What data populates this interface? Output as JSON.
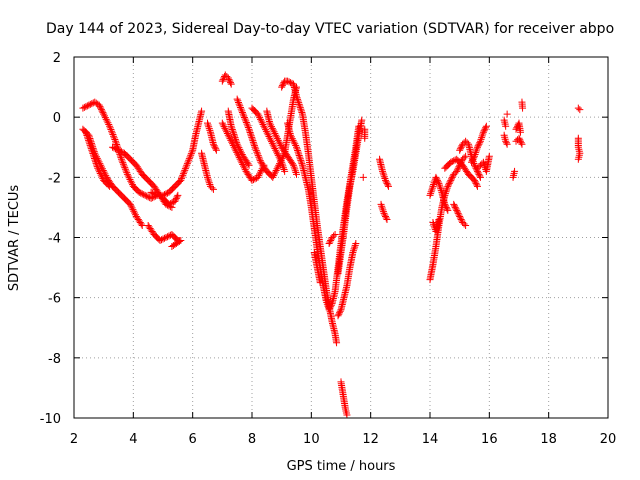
{
  "chart_data": {
    "type": "scatter",
    "title": "Day 144 of 2023, Sidereal Day-to-day VTEC variation (SDTVAR) for receiver abpo",
    "xlabel": "GPS time / hours",
    "ylabel": "SDTVAR / TECUs",
    "xlim": [
      2,
      20
    ],
    "ylim": [
      -10,
      2
    ],
    "xticks": [
      2,
      4,
      6,
      8,
      10,
      12,
      14,
      16,
      18,
      20
    ],
    "yticks": [
      -10,
      -8,
      -6,
      -4,
      -2,
      0,
      2
    ],
    "grid": true,
    "marker": "+",
    "color": "#ff0000",
    "series": [
      {
        "name": "s1",
        "points": [
          [
            2.3,
            -0.4
          ],
          [
            2.5,
            -0.6
          ],
          [
            2.7,
            -1.2
          ],
          [
            2.9,
            -1.6
          ],
          [
            3.1,
            -2.0
          ],
          [
            3.3,
            -2.3
          ],
          [
            3.5,
            -2.5
          ],
          [
            3.7,
            -2.7
          ],
          [
            3.9,
            -2.9
          ],
          [
            4.1,
            -3.3
          ],
          [
            4.3,
            -3.6
          ]
        ]
      },
      {
        "name": "s2",
        "points": [
          [
            2.3,
            0.3
          ],
          [
            2.5,
            0.4
          ],
          [
            2.7,
            0.5
          ],
          [
            2.85,
            0.4
          ],
          [
            3.0,
            0.1
          ],
          [
            3.2,
            -0.3
          ],
          [
            3.4,
            -0.8
          ],
          [
            3.6,
            -1.4
          ],
          [
            3.8,
            -1.9
          ],
          [
            4.0,
            -2.3
          ],
          [
            4.2,
            -2.5
          ],
          [
            4.4,
            -2.6
          ],
          [
            4.6,
            -2.7
          ],
          [
            4.8,
            -2.6
          ]
        ]
      },
      {
        "name": "s3",
        "points": [
          [
            2.4,
            -0.5
          ],
          [
            2.6,
            -1.1
          ],
          [
            2.8,
            -1.7
          ],
          [
            3.0,
            -2.1
          ],
          [
            3.2,
            -2.3
          ]
        ]
      },
      {
        "name": "s4",
        "points": [
          [
            3.3,
            -1.0
          ],
          [
            3.5,
            -1.1
          ],
          [
            3.7,
            -1.2
          ],
          [
            3.9,
            -1.4
          ],
          [
            4.1,
            -1.6
          ],
          [
            4.3,
            -1.9
          ],
          [
            4.5,
            -2.1
          ],
          [
            4.7,
            -2.3
          ],
          [
            4.9,
            -2.6
          ],
          [
            5.1,
            -2.9
          ],
          [
            5.3,
            -3.0
          ]
        ]
      },
      {
        "name": "s5",
        "points": [
          [
            4.5,
            -3.6
          ],
          [
            4.7,
            -3.9
          ],
          [
            4.9,
            -4.1
          ],
          [
            5.1,
            -4.0
          ],
          [
            5.3,
            -3.9
          ],
          [
            5.5,
            -4.1
          ],
          [
            5.6,
            -4.1
          ],
          [
            5.3,
            -4.3
          ]
        ]
      },
      {
        "name": "s6",
        "points": [
          [
            4.6,
            -2.5
          ],
          [
            4.8,
            -2.6
          ],
          [
            5.0,
            -2.6
          ],
          [
            5.2,
            -2.5
          ],
          [
            5.4,
            -2.3
          ],
          [
            5.6,
            -2.1
          ],
          [
            5.8,
            -1.6
          ],
          [
            6.0,
            -1.1
          ],
          [
            6.1,
            -0.6
          ],
          [
            6.2,
            -0.2
          ],
          [
            6.3,
            0.2
          ]
        ]
      },
      {
        "name": "s7",
        "points": [
          [
            5.0,
            -2.7
          ],
          [
            5.2,
            -2.9
          ],
          [
            5.4,
            -2.8
          ],
          [
            5.5,
            -2.6
          ]
        ]
      },
      {
        "name": "s8",
        "points": [
          [
            6.3,
            -1.2
          ],
          [
            6.4,
            -1.6
          ],
          [
            6.5,
            -2.0
          ],
          [
            6.6,
            -2.3
          ],
          [
            6.7,
            -2.4
          ]
        ]
      },
      {
        "name": "s9",
        "points": [
          [
            6.5,
            -0.2
          ],
          [
            6.6,
            -0.5
          ],
          [
            6.7,
            -0.9
          ],
          [
            6.8,
            -1.1
          ]
        ]
      },
      {
        "name": "s10",
        "points": [
          [
            7.0,
            1.2
          ],
          [
            7.1,
            1.4
          ],
          [
            7.2,
            1.3
          ],
          [
            7.3,
            1.1
          ]
        ]
      },
      {
        "name": "s11",
        "points": [
          [
            7.0,
            -0.2
          ],
          [
            7.2,
            -0.6
          ],
          [
            7.4,
            -1.0
          ],
          [
            7.6,
            -1.4
          ],
          [
            7.8,
            -1.8
          ],
          [
            8.0,
            -2.1
          ],
          [
            8.2,
            -2.0
          ],
          [
            8.4,
            -1.6
          ]
        ]
      },
      {
        "name": "s12",
        "points": [
          [
            7.2,
            0.2
          ],
          [
            7.3,
            -0.3
          ],
          [
            7.5,
            -0.9
          ],
          [
            7.7,
            -1.3
          ],
          [
            7.9,
            -1.6
          ]
        ]
      },
      {
        "name": "s13",
        "points": [
          [
            7.5,
            0.6
          ],
          [
            7.7,
            0.1
          ],
          [
            7.9,
            -0.4
          ],
          [
            8.1,
            -1.0
          ],
          [
            8.3,
            -1.5
          ],
          [
            8.5,
            -1.8
          ],
          [
            8.7,
            -2.0
          ],
          [
            8.9,
            -1.6
          ],
          [
            9.1,
            -1.2
          ],
          [
            9.2,
            -0.6
          ],
          [
            9.3,
            0.0
          ],
          [
            9.4,
            0.6
          ],
          [
            9.5,
            1.0
          ]
        ]
      },
      {
        "name": "s14",
        "points": [
          [
            8.0,
            0.3
          ],
          [
            8.2,
            0.1
          ],
          [
            8.4,
            -0.3
          ],
          [
            8.6,
            -0.7
          ],
          [
            8.8,
            -1.1
          ],
          [
            9.0,
            -1.5
          ],
          [
            9.1,
            -1.8
          ]
        ]
      },
      {
        "name": "s15",
        "points": [
          [
            8.5,
            0.2
          ],
          [
            8.6,
            -0.2
          ],
          [
            8.8,
            -0.6
          ],
          [
            9.0,
            -1.0
          ],
          [
            9.2,
            -1.3
          ],
          [
            9.4,
            -1.6
          ],
          [
            9.5,
            -1.9
          ]
        ]
      },
      {
        "name": "s16",
        "points": [
          [
            9.0,
            1.0
          ],
          [
            9.1,
            1.2
          ],
          [
            9.2,
            1.2
          ],
          [
            9.4,
            1.1
          ],
          [
            9.5,
            0.7
          ],
          [
            9.7,
            0.1
          ],
          [
            9.8,
            -0.5
          ],
          [
            9.9,
            -1.2
          ],
          [
            10.0,
            -2.0
          ],
          [
            10.1,
            -2.8
          ],
          [
            10.2,
            -3.6
          ],
          [
            10.3,
            -4.3
          ],
          [
            10.4,
            -5.0
          ],
          [
            10.5,
            -5.7
          ],
          [
            10.6,
            -6.3
          ],
          [
            10.7,
            -6.8
          ],
          [
            10.8,
            -7.2
          ],
          [
            10.85,
            -7.5
          ]
        ]
      },
      {
        "name": "s17",
        "points": [
          [
            9.2,
            -0.2
          ],
          [
            9.3,
            -0.6
          ],
          [
            9.5,
            -1.0
          ],
          [
            9.7,
            -1.6
          ],
          [
            9.9,
            -2.4
          ],
          [
            10.0,
            -3.0
          ],
          [
            10.1,
            -3.7
          ],
          [
            10.2,
            -4.4
          ],
          [
            10.3,
            -5.0
          ],
          [
            10.4,
            -5.6
          ],
          [
            10.5,
            -6.1
          ],
          [
            10.6,
            -6.4
          ],
          [
            10.7,
            -6.2
          ],
          [
            10.8,
            -5.8
          ],
          [
            10.9,
            -5.0
          ],
          [
            11.0,
            -4.2
          ],
          [
            11.1,
            -3.5
          ],
          [
            11.2,
            -2.8
          ],
          [
            11.3,
            -2.2
          ],
          [
            11.4,
            -1.6
          ],
          [
            11.5,
            -1.0
          ],
          [
            11.6,
            -0.3
          ]
        ]
      },
      {
        "name": "s18",
        "points": [
          [
            10.1,
            -4.5
          ],
          [
            10.2,
            -5.0
          ],
          [
            10.3,
            -5.5
          ]
        ]
      },
      {
        "name": "s19",
        "points": [
          [
            10.6,
            -4.2
          ],
          [
            10.7,
            -4.0
          ],
          [
            10.8,
            -3.9
          ]
        ]
      },
      {
        "name": "s20",
        "points": [
          [
            10.9,
            -6.6
          ],
          [
            11.0,
            -6.4
          ],
          [
            11.1,
            -6.0
          ],
          [
            11.2,
            -5.6
          ],
          [
            11.3,
            -5.0
          ],
          [
            11.4,
            -4.5
          ],
          [
            11.5,
            -4.2
          ]
        ]
      },
      {
        "name": "s21",
        "points": [
          [
            10.9,
            -5.2
          ],
          [
            11.0,
            -4.5
          ],
          [
            11.1,
            -3.8
          ],
          [
            11.2,
            -3.0
          ],
          [
            11.3,
            -2.3
          ],
          [
            11.4,
            -1.8
          ],
          [
            11.5,
            -1.2
          ],
          [
            11.6,
            -0.6
          ],
          [
            11.7,
            -0.1
          ]
        ]
      },
      {
        "name": "s22",
        "points": [
          [
            11.0,
            -8.8
          ],
          [
            11.05,
            -9.1
          ],
          [
            11.1,
            -9.4
          ],
          [
            11.15,
            -9.7
          ],
          [
            11.2,
            -9.9
          ]
        ]
      },
      {
        "name": "s23",
        "points": [
          [
            11.8,
            -0.4
          ],
          [
            11.8,
            -0.7
          ]
        ]
      },
      {
        "name": "s24",
        "points": [
          [
            11.75,
            -2.0
          ]
        ]
      },
      {
        "name": "s25",
        "points": [
          [
            12.3,
            -1.4
          ],
          [
            12.4,
            -1.8
          ],
          [
            12.5,
            -2.1
          ],
          [
            12.6,
            -2.3
          ]
        ]
      },
      {
        "name": "s26",
        "points": [
          [
            12.35,
            -2.9
          ],
          [
            12.45,
            -3.2
          ],
          [
            12.55,
            -3.4
          ]
        ]
      },
      {
        "name": "s27",
        "points": [
          [
            14.0,
            -5.4
          ],
          [
            14.1,
            -4.9
          ],
          [
            14.2,
            -4.3
          ],
          [
            14.3,
            -3.6
          ],
          [
            14.4,
            -3.0
          ],
          [
            14.5,
            -2.6
          ],
          [
            14.6,
            -2.3
          ],
          [
            14.7,
            -2.1
          ],
          [
            14.8,
            -1.9
          ],
          [
            14.9,
            -1.8
          ],
          [
            15.0,
            -1.6
          ],
          [
            15.1,
            -1.4
          ],
          [
            15.2,
            -1.3
          ]
        ]
      },
      {
        "name": "s28",
        "points": [
          [
            14.0,
            -2.6
          ],
          [
            14.1,
            -2.3
          ],
          [
            14.2,
            -2.0
          ],
          [
            14.3,
            -2.2
          ],
          [
            14.4,
            -2.5
          ],
          [
            14.5,
            -2.9
          ],
          [
            14.6,
            -3.1
          ]
        ]
      },
      {
        "name": "s29",
        "points": [
          [
            14.1,
            -3.5
          ],
          [
            14.2,
            -3.8
          ],
          [
            14.3,
            -3.4
          ]
        ]
      },
      {
        "name": "s30",
        "points": [
          [
            14.5,
            -1.7
          ],
          [
            14.7,
            -1.5
          ],
          [
            14.9,
            -1.4
          ],
          [
            15.1,
            -1.6
          ],
          [
            15.3,
            -1.9
          ],
          [
            15.5,
            -2.1
          ],
          [
            15.6,
            -2.3
          ]
        ]
      },
      {
        "name": "s31",
        "points": [
          [
            14.8,
            -2.9
          ],
          [
            14.9,
            -3.1
          ],
          [
            15.0,
            -3.3
          ],
          [
            15.1,
            -3.5
          ],
          [
            15.2,
            -3.6
          ]
        ]
      },
      {
        "name": "s32",
        "points": [
          [
            15.0,
            -1.1
          ],
          [
            15.1,
            -0.9
          ],
          [
            15.2,
            -0.8
          ],
          [
            15.3,
            -0.9
          ],
          [
            15.4,
            -1.3
          ],
          [
            15.5,
            -1.6
          ],
          [
            15.6,
            -1.8
          ],
          [
            15.7,
            -2.0
          ]
        ]
      },
      {
        "name": "s33",
        "points": [
          [
            15.4,
            -1.5
          ],
          [
            15.5,
            -1.3
          ],
          [
            15.6,
            -1.0
          ],
          [
            15.7,
            -0.8
          ],
          [
            15.8,
            -0.5
          ],
          [
            15.9,
            -0.3
          ]
        ]
      },
      {
        "name": "s34",
        "points": [
          [
            15.6,
            -1.7
          ],
          [
            15.7,
            -1.6
          ],
          [
            15.8,
            -1.5
          ],
          [
            15.9,
            -1.8
          ],
          [
            16.0,
            -1.3
          ]
        ]
      },
      {
        "name": "s35",
        "points": [
          [
            16.5,
            -0.6
          ],
          [
            16.55,
            -0.8
          ],
          [
            16.6,
            -0.9
          ]
        ]
      },
      {
        "name": "s36",
        "points": [
          [
            16.5,
            -0.1
          ],
          [
            16.55,
            -0.3
          ]
        ]
      },
      {
        "name": "s37",
        "points": [
          [
            16.8,
            -2.0
          ],
          [
            16.85,
            -1.8
          ]
        ]
      },
      {
        "name": "s38",
        "points": [
          [
            16.9,
            -0.4
          ],
          [
            17.0,
            -0.2
          ],
          [
            17.05,
            -0.5
          ]
        ]
      },
      {
        "name": "s39",
        "points": [
          [
            16.9,
            -0.8
          ],
          [
            17.0,
            -0.7
          ],
          [
            17.1,
            -0.9
          ]
        ]
      },
      {
        "name": "s40",
        "points": [
          [
            17.1,
            0.5
          ],
          [
            17.12,
            0.3
          ]
        ]
      },
      {
        "name": "s41",
        "points": [
          [
            16.6,
            0.1
          ]
        ]
      },
      {
        "name": "s42",
        "points": [
          [
            19.0,
            0.3
          ],
          [
            19.05,
            0.25
          ]
        ]
      },
      {
        "name": "s43",
        "points": [
          [
            19.0,
            -0.7
          ],
          [
            19.0,
            -1.0
          ],
          [
            19.05,
            -1.2
          ],
          [
            19.0,
            -1.4
          ]
        ]
      }
    ]
  }
}
